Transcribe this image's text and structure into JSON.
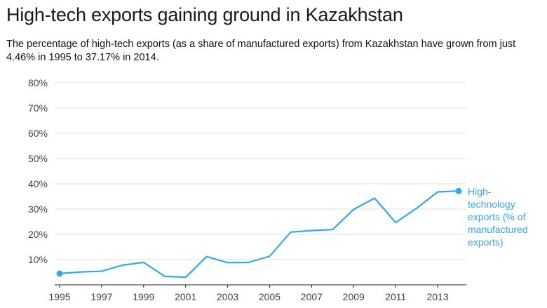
{
  "header": {
    "title": "High-tech exports gaining ground in Kazakhstan",
    "subtitle": "The percentage of high-tech exports (as a share of manufactured exports) from Kazakhstan have grown from just 4.46% in 1995 to  37.17% in 2014."
  },
  "chart_data": {
    "type": "line",
    "title": "High-tech exports gaining ground in Kazakhstan",
    "xlabel": "",
    "ylabel": "",
    "x": [
      1995,
      1996,
      1997,
      1998,
      1999,
      2000,
      2001,
      2002,
      2003,
      2004,
      2005,
      2006,
      2007,
      2008,
      2009,
      2010,
      2011,
      2012,
      2013,
      2014
    ],
    "series": [
      {
        "name": "High-technology exports (% of manufactured exports)",
        "color": "#35a9e8",
        "values": [
          4.46,
          5.1,
          5.4,
          7.8,
          8.9,
          3.4,
          3.0,
          11.2,
          8.8,
          8.9,
          11.3,
          20.9,
          21.5,
          21.9,
          29.9,
          34.3,
          24.7,
          30.3,
          36.8,
          37.17
        ]
      }
    ],
    "xticks": [
      "1995",
      "1997",
      "1999",
      "2001",
      "2003",
      "2005",
      "2007",
      "2009",
      "2011",
      "2013"
    ],
    "yticks": [
      "10%",
      "20%",
      "30%",
      "40%",
      "50%",
      "60%",
      "70%",
      "80%"
    ],
    "ylim": [
      0,
      80
    ],
    "xlim": [
      1995,
      2014
    ],
    "grid": true,
    "legend_lines": [
      "High-",
      "technology",
      "exports (% of",
      "manufactured",
      "exports)"
    ]
  }
}
